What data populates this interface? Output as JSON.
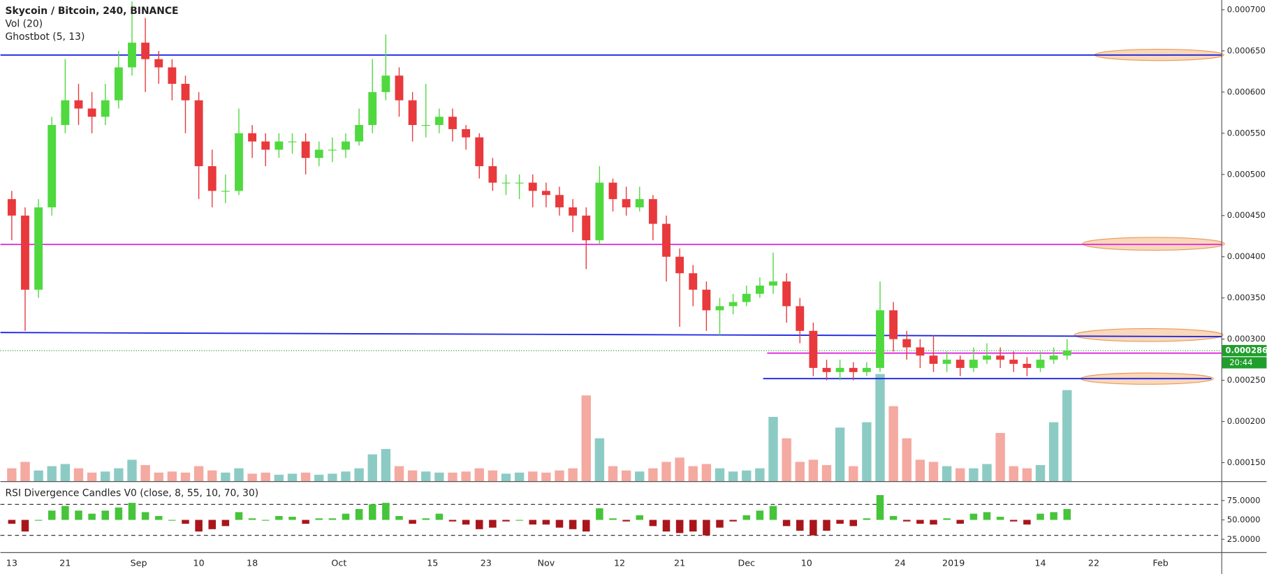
{
  "header": {
    "symbol": "Skycoin / Bitcoin, 240, BINANCE",
    "indicators": [
      "Vol (20)",
      "Ghostbot (5, 13)"
    ]
  },
  "chart_data": [
    {
      "type": "candlestick",
      "up_color": "#4fd93f",
      "down_color": "#e8393c",
      "xlim": [
        -1.7,
        181.1
      ],
      "xticks": [
        {
          "value": 0,
          "label": "13"
        },
        {
          "value": 8,
          "label": "21"
        },
        {
          "value": 19,
          "label": "Sep"
        },
        {
          "value": 28,
          "label": "10"
        },
        {
          "value": 36,
          "label": "18"
        },
        {
          "value": 49,
          "label": "Oct"
        },
        {
          "value": 63,
          "label": "15"
        },
        {
          "value": 71,
          "label": "23"
        },
        {
          "value": 80,
          "label": "Nov"
        },
        {
          "value": 91,
          "label": "12"
        },
        {
          "value": 100,
          "label": "21"
        },
        {
          "value": 110,
          "label": "Dec"
        },
        {
          "value": 119,
          "label": "10"
        },
        {
          "value": 133,
          "label": "24"
        },
        {
          "value": 141,
          "label": "2019"
        },
        {
          "value": 154,
          "label": "14"
        },
        {
          "value": 162,
          "label": "22"
        },
        {
          "value": 172,
          "label": "Feb"
        }
      ],
      "ylim": [
        0.0001275,
        0.0007118
      ],
      "yticks": [
        {
          "value": 0.00015,
          "label": "0.000150"
        },
        {
          "value": 0.0002,
          "label": "0.000200"
        },
        {
          "value": 0.00025,
          "label": "0.000250"
        },
        {
          "value": 0.0003,
          "label": "0.000300"
        },
        {
          "value": 0.00035,
          "label": "0.000350"
        },
        {
          "value": 0.0004,
          "label": "0.000400"
        },
        {
          "value": 0.00045,
          "label": "0.000450"
        },
        {
          "value": 0.0005,
          "label": "0.000500"
        },
        {
          "value": 0.00055,
          "label": "0.000550"
        },
        {
          "value": 0.0006,
          "label": "0.000600"
        },
        {
          "value": 0.00065,
          "label": "0.000650"
        },
        {
          "value": 0.0007,
          "label": "0.000700"
        }
      ],
      "grid": true,
      "x": [
        0,
        2,
        4,
        6,
        8,
        10,
        12,
        14,
        16,
        18,
        20,
        22,
        24,
        26,
        28,
        30,
        32,
        34,
        36,
        38,
        40,
        42,
        44,
        46,
        48,
        50,
        52,
        54,
        56,
        58,
        60,
        62,
        64,
        66,
        68,
        70,
        72,
        74,
        76,
        78,
        80,
        82,
        84,
        86,
        88,
        90,
        92,
        94,
        96,
        98,
        100,
        102,
        104,
        106,
        108,
        110,
        112,
        114,
        116,
        118,
        120,
        122,
        124,
        126,
        128,
        130,
        132,
        134,
        136,
        138,
        140,
        142,
        144,
        146,
        148,
        150,
        152,
        154,
        156,
        158
      ],
      "open": [
        0.00047,
        0.00045,
        0.00036,
        0.00046,
        0.00056,
        0.00059,
        0.00058,
        0.00057,
        0.00059,
        0.00063,
        0.00066,
        0.00064,
        0.00063,
        0.00061,
        0.00059,
        0.00051,
        0.00048,
        0.00048,
        0.00055,
        0.00054,
        0.00053,
        0.00054,
        0.00054,
        0.00052,
        0.00053,
        0.00053,
        0.00054,
        0.00056,
        0.0006,
        0.00062,
        0.00059,
        0.00056,
        0.00056,
        0.00057,
        0.000555,
        0.000545,
        0.00051,
        0.00049,
        0.00049,
        0.00049,
        0.00048,
        0.000475,
        0.00046,
        0.00045,
        0.00042,
        0.00049,
        0.00047,
        0.00046,
        0.00047,
        0.00044,
        0.0004,
        0.00038,
        0.00036,
        0.000335,
        0.00034,
        0.000345,
        0.000355,
        0.000365,
        0.00037,
        0.00034,
        0.00031,
        0.000265,
        0.00026,
        0.000265,
        0.00026,
        0.000265,
        0.000335,
        0.0003,
        0.00029,
        0.00028,
        0.00027,
        0.000275,
        0.000265,
        0.000275,
        0.00028,
        0.000275,
        0.00027,
        0.000265,
        0.000275,
        0.00028
      ],
      "high": [
        0.00048,
        0.00046,
        0.00047,
        0.00057,
        0.00064,
        0.00061,
        0.0006,
        0.00061,
        0.00065,
        0.00071,
        0.00069,
        0.00065,
        0.00064,
        0.00062,
        0.0006,
        0.00053,
        0.0005,
        0.00058,
        0.00056,
        0.00055,
        0.00055,
        0.00055,
        0.00055,
        0.00054,
        0.000545,
        0.00055,
        0.00058,
        0.00064,
        0.00067,
        0.00063,
        0.0006,
        0.00061,
        0.00058,
        0.00058,
        0.00056,
        0.00055,
        0.00052,
        0.0005,
        0.0005,
        0.0005,
        0.00049,
        0.000485,
        0.00047,
        0.00046,
        0.00051,
        0.000495,
        0.000485,
        0.000485,
        0.000475,
        0.00045,
        0.00041,
        0.00039,
        0.00037,
        0.00035,
        0.000355,
        0.000365,
        0.000375,
        0.000405,
        0.00038,
        0.00035,
        0.00032,
        0.000275,
        0.000275,
        0.000272,
        0.000272,
        0.00037,
        0.000345,
        0.00031,
        0.0003,
        0.000305,
        0.000285,
        0.00028,
        0.00029,
        0.000295,
        0.00029,
        0.000285,
        0.000278,
        0.000285,
        0.00029,
        0.0003
      ],
      "low": [
        0.00042,
        0.00031,
        0.00035,
        0.00045,
        0.00055,
        0.00056,
        0.00055,
        0.00056,
        0.00058,
        0.00062,
        0.0006,
        0.00061,
        0.00059,
        0.00055,
        0.00047,
        0.00046,
        0.000465,
        0.000475,
        0.00052,
        0.00051,
        0.00052,
        0.000525,
        0.0005,
        0.00051,
        0.000515,
        0.00052,
        0.000535,
        0.00055,
        0.00059,
        0.00057,
        0.00054,
        0.000545,
        0.00055,
        0.00054,
        0.00053,
        0.000495,
        0.00048,
        0.000475,
        0.00047,
        0.00046,
        0.00046,
        0.00045,
        0.00043,
        0.000385,
        0.000415,
        0.000455,
        0.00045,
        0.000455,
        0.00042,
        0.00037,
        0.000315,
        0.00034,
        0.00031,
        0.000305,
        0.00033,
        0.00034,
        0.00035,
        0.000355,
        0.00032,
        0.000295,
        0.000255,
        0.00025,
        0.00025,
        0.00025,
        0.000255,
        0.00026,
        0.000285,
        0.000275,
        0.000265,
        0.00026,
        0.00026,
        0.000255,
        0.00026,
        0.00027,
        0.000265,
        0.00026,
        0.000255,
        0.00026,
        0.00027,
        0.000275
      ],
      "close": [
        0.00045,
        0.00036,
        0.00046,
        0.00056,
        0.00059,
        0.00058,
        0.00057,
        0.00059,
        0.00063,
        0.00066,
        0.00064,
        0.00063,
        0.00061,
        0.00059,
        0.00051,
        0.00048,
        0.00048,
        0.00055,
        0.00054,
        0.00053,
        0.00054,
        0.00054,
        0.00052,
        0.00053,
        0.00053,
        0.00054,
        0.00056,
        0.0006,
        0.00062,
        0.00059,
        0.00056,
        0.00056,
        0.00057,
        0.000555,
        0.000545,
        0.00051,
        0.00049,
        0.00049,
        0.00049,
        0.00048,
        0.000475,
        0.00046,
        0.00045,
        0.00042,
        0.00049,
        0.00047,
        0.00046,
        0.00047,
        0.00044,
        0.0004,
        0.00038,
        0.00036,
        0.000335,
        0.00034,
        0.000345,
        0.000355,
        0.000365,
        0.00037,
        0.00034,
        0.00031,
        0.000265,
        0.00026,
        0.000265,
        0.00026,
        0.000265,
        0.000335,
        0.0003,
        0.00029,
        0.00028,
        0.00027,
        0.000275,
        0.000265,
        0.000275,
        0.00028,
        0.000275,
        0.00027,
        0.000265,
        0.000275,
        0.00028,
        0.000286
      ],
      "lines": [
        {
          "x": [
            -1.7,
            181.1
          ],
          "y": [
            0.000645,
            0.000645
          ],
          "color": "#1a24e0"
        },
        {
          "x": [
            -1.7,
            181.1
          ],
          "y": [
            0.000415,
            0.000415
          ],
          "color": "#e024e0"
        },
        {
          "x": [
            -1.7,
            181.1
          ],
          "y": [
            0.000308,
            0.000303
          ],
          "color": "#1a24e0"
        },
        {
          "x": [
            113.1,
            181.1
          ],
          "y": [
            0.000283,
            0.000283
          ],
          "color": "#e024e0"
        },
        {
          "x": [
            112.5,
            179.6
          ],
          "y": [
            0.000252,
            0.000252
          ],
          "color": "#1a24e0"
        }
      ],
      "last_price": 0.000286,
      "countdown": "20:44"
    },
    {
      "type": "volume",
      "vlim": [
        0,
        110
      ],
      "up_color": "#8ccbc4",
      "down_color": "#f4a9a1",
      "values": [
        12,
        18,
        10,
        14,
        16,
        12,
        8,
        9,
        12,
        20,
        15,
        8,
        9,
        8,
        14,
        10,
        8,
        12,
        7,
        8,
        6,
        7,
        8,
        6,
        7,
        9,
        12,
        25,
        30,
        14,
        10,
        9,
        8,
        8,
        9,
        12,
        10,
        7,
        8,
        9,
        8,
        10,
        12,
        80,
        40,
        14,
        10,
        9,
        12,
        18,
        22,
        14,
        16,
        12,
        9,
        10,
        12,
        60,
        40,
        18,
        20,
        15,
        50,
        14,
        55,
        100,
        70,
        40,
        20,
        18,
        14,
        12,
        12,
        16,
        45,
        14,
        12,
        15,
        55,
        85
      ]
    },
    {
      "type": "rsi",
      "title": "RSI Divergence Candles V0 (close, 8, 55, 10, 70, 30)",
      "up_color": "#46c43a",
      "down_color": "#a8161c",
      "ylim": [
        8.3,
        97.9
      ],
      "yticks": [
        {
          "value": 25,
          "label": "25.0000"
        },
        {
          "value": 50,
          "label": "50.0000"
        },
        {
          "value": 75,
          "label": "75.0000"
        }
      ],
      "bands": [
        70,
        30
      ],
      "values": [
        45,
        35,
        50,
        62,
        68,
        62,
        58,
        62,
        66,
        72,
        60,
        55,
        50,
        45,
        35,
        38,
        42,
        60,
        52,
        50,
        55,
        54,
        45,
        52,
        52,
        58,
        64,
        70,
        72,
        55,
        45,
        52,
        58,
        48,
        44,
        38,
        40,
        48,
        50,
        44,
        44,
        40,
        38,
        35,
        65,
        52,
        48,
        56,
        42,
        35,
        33,
        35,
        30,
        40,
        48,
        56,
        62,
        68,
        42,
        36,
        30,
        36,
        45,
        42,
        52,
        82,
        55,
        48,
        45,
        44,
        52,
        45,
        58,
        60,
        54,
        48,
        44,
        58,
        60,
        64
      ]
    }
  ]
}
